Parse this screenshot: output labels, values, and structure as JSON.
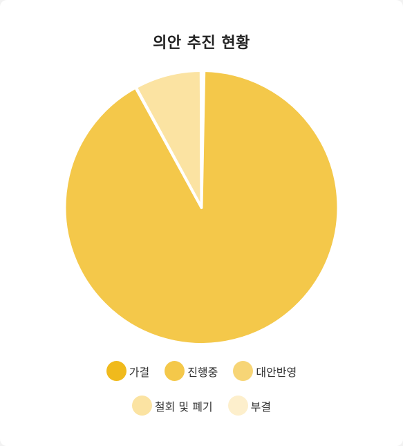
{
  "chart_data": {
    "type": "pie",
    "title": "의안 추진 현황",
    "categories": [
      "가결",
      "진행중",
      "대안반영",
      "철회 및 폐기",
      "부결"
    ],
    "values": [
      0.3,
      91.7,
      0.05,
      7.9,
      0.05
    ],
    "value_unit": "percent",
    "colors": [
      "#F0BA1C",
      "#F4C84A",
      "#F7D576",
      "#FBE3A2",
      "#FDEFCC"
    ],
    "start_angle_deg": 0,
    "direction": "clockwise",
    "slice_border_color": "#FFFFFF",
    "legend_position": "bottom"
  }
}
